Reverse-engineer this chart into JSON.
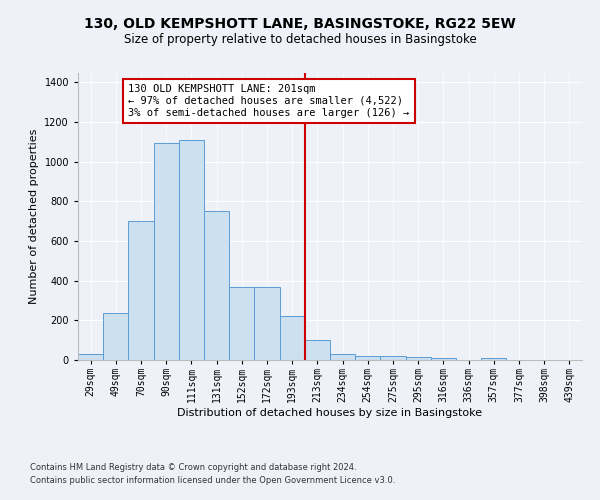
{
  "title": "130, OLD KEMPSHOTT LANE, BASINGSTOKE, RG22 5EW",
  "subtitle": "Size of property relative to detached houses in Basingstoke",
  "xlabel": "Distribution of detached houses by size in Basingstoke",
  "ylabel": "Number of detached properties",
  "footnote1": "Contains HM Land Registry data © Crown copyright and database right 2024.",
  "footnote2": "Contains public sector information licensed under the Open Government Licence v3.0.",
  "bar_labels": [
    "29sqm",
    "49sqm",
    "70sqm",
    "90sqm",
    "111sqm",
    "131sqm",
    "152sqm",
    "172sqm",
    "193sqm",
    "213sqm",
    "234sqm",
    "254sqm",
    "275sqm",
    "295sqm",
    "316sqm",
    "336sqm",
    "357sqm",
    "377sqm",
    "398sqm",
    "439sqm"
  ],
  "bar_values": [
    30,
    235,
    700,
    1095,
    1110,
    750,
    370,
    370,
    220,
    100,
    30,
    20,
    20,
    15,
    10,
    0,
    10,
    0,
    0,
    0
  ],
  "bar_color": "#cce0f0",
  "bar_edgecolor": "#5b9bd5",
  "vline_x": 8.5,
  "vline_color": "#cc0000",
  "annotation_text": "130 OLD KEMPSHOTT LANE: 201sqm\n← 97% of detached houses are smaller (4,522)\n3% of semi-detached houses are larger (126) →",
  "annotation_box_color": "#cc0000",
  "annotation_box_facecolor": "white",
  "ylim": [
    0,
    1450
  ],
  "yticks": [
    0,
    200,
    400,
    600,
    800,
    1000,
    1200,
    1400
  ],
  "bg_color": "#eef2f8",
  "title_fontsize": 10,
  "subtitle_fontsize": 8.5,
  "ylabel_fontsize": 8,
  "xlabel_fontsize": 8,
  "tick_fontsize": 7,
  "annotation_fontsize": 7.5,
  "footnote_fontsize": 6
}
